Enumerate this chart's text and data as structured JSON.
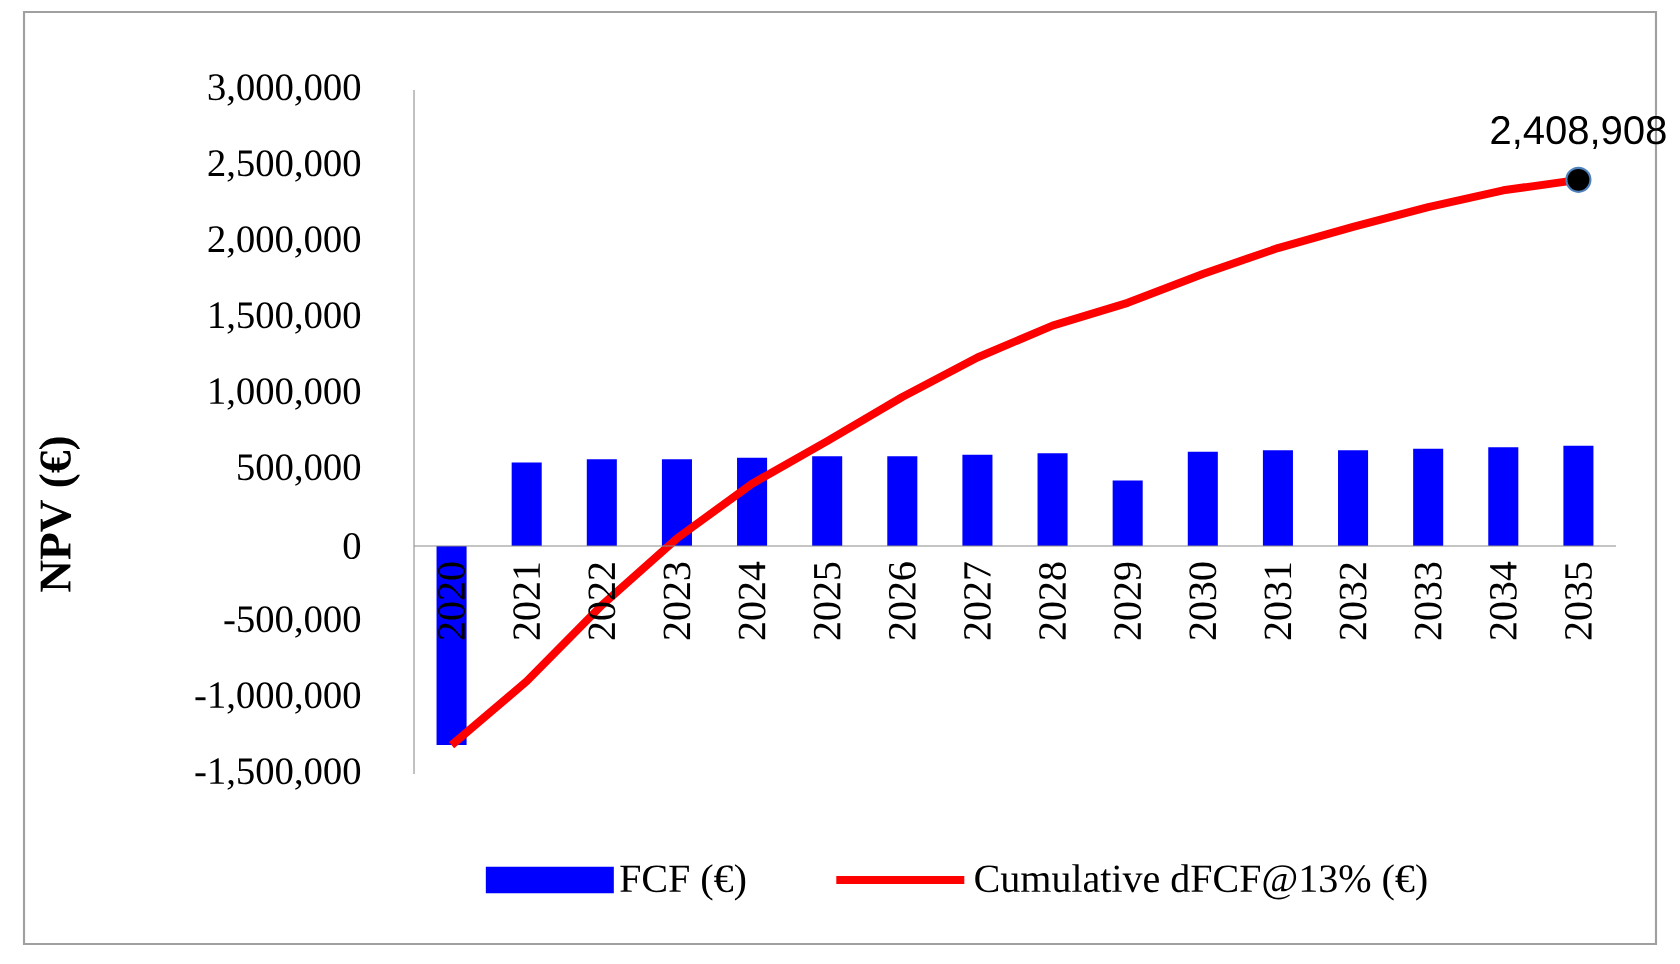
{
  "chart_data": {
    "type": "bar",
    "ylabel": "NPV (€)",
    "categories": [
      "2020",
      "2021",
      "2022",
      "2023",
      "2024",
      "2025",
      "2026",
      "2027",
      "2028",
      "2029",
      "2030",
      "2031",
      "2032",
      "2033",
      "2034",
      "2035"
    ],
    "series": [
      {
        "name": "FCF (€)",
        "color": "#0000ff",
        "values": [
          -1310000,
          550000,
          570000,
          570000,
          580000,
          590000,
          590000,
          600000,
          610000,
          430000,
          620000,
          630000,
          630000,
          640000,
          650000,
          660000
        ]
      },
      {
        "name": "Cumulative dFCF@13% (€)",
        "type": "line",
        "color": "#ff0000",
        "values": [
          -1310000,
          -890000,
          -390000,
          50000,
          410000,
          690000,
          980000,
          1240000,
          1450000,
          1600000,
          1790000,
          1960000,
          2100000,
          2230000,
          2340000,
          2408908
        ]
      }
    ],
    "ylim": [
      -1500000,
      3000000
    ],
    "yticks": [
      {
        "value": -1500000,
        "label": "-1,500,000"
      },
      {
        "value": -1000000,
        "label": "-1,000,000"
      },
      {
        "value": -500000,
        "label": "-500,000"
      },
      0,
      {
        "value": 500000,
        "label": "500,000"
      },
      {
        "value": 1000000,
        "label": "1,000,000"
      },
      {
        "value": 1500000,
        "label": "1,500,000"
      },
      {
        "value": 2000000,
        "label": "2,000,000"
      },
      {
        "value": 2500000,
        "label": "2,500,000"
      },
      {
        "value": 3000000,
        "label": "3,000,000"
      }
    ],
    "annotations": [
      {
        "text": "2,408,908",
        "x": "2035",
        "y": 2408908
      }
    ],
    "legend": "bottom"
  }
}
